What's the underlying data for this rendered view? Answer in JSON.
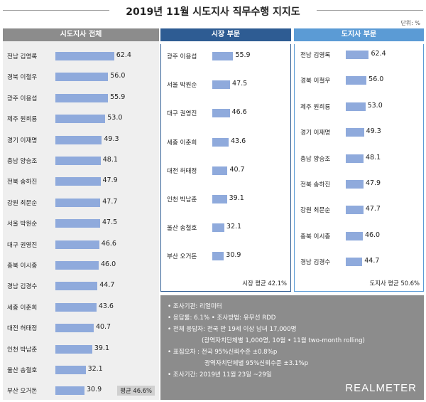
{
  "title": "2019년 11월 시도지사 직무수행 지지도",
  "unit": "단위: %",
  "colors": {
    "bar": "#8faadc",
    "overall_header": "#8c8c8c",
    "mayor_header": "#2e5c93",
    "governor_header": "#5b9bd5"
  },
  "chart_data": [
    {
      "type": "bar",
      "orientation": "horizontal",
      "title": "시도지사 전체",
      "categories": [
        "전남 김영록",
        "경북 이철우",
        "광주 이용섭",
        "제주 원희룡",
        "경기 이재명",
        "충남 양승조",
        "전북 송하진",
        "강원 최문순",
        "서울 박원순",
        "대구 권영진",
        "충북 이시종",
        "경남 김경수",
        "세종 이춘희",
        "대전 허태정",
        "인천 박남춘",
        "울산 송철호",
        "부산 오거돈"
      ],
      "values": [
        "62.4",
        "56.0",
        "55.9",
        "53.0",
        "49.3",
        "48.1",
        "47.9",
        "47.7",
        "47.5",
        "46.6",
        "46.0",
        "44.7",
        "43.6",
        "40.7",
        "39.1",
        "32.1",
        "30.9"
      ],
      "average_label": "평균 46.6%"
    },
    {
      "type": "bar",
      "orientation": "horizontal",
      "title": "시장 부문",
      "categories": [
        "광주 이용섭",
        "서울 박원순",
        "대구 권영진",
        "세종 이춘희",
        "대전 허태정",
        "인천 박남춘",
        "울산 송철호",
        "부산 오거돈"
      ],
      "values": [
        "55.9",
        "47.5",
        "46.6",
        "43.6",
        "40.7",
        "39.1",
        "32.1",
        "30.9"
      ],
      "average_label": "시장 평균 42.1%"
    },
    {
      "type": "bar",
      "orientation": "horizontal",
      "title": "도지사 부문",
      "categories": [
        "전남 김영록",
        "경북 이철우",
        "제주 원희룡",
        "경기 이재명",
        "충남 양승조",
        "전북 송하진",
        "강원 최문순",
        "충북 이시종",
        "경남 김경수"
      ],
      "values": [
        "62.4",
        "56.0",
        "53.0",
        "49.3",
        "48.1",
        "47.9",
        "47.7",
        "46.0",
        "44.7"
      ],
      "average_label": "도지사 평균 50.6%"
    }
  ],
  "info": {
    "lines": [
      "• 조사기관: 리얼미터",
      "• 응답률: 6.1% • 조사방법: 유무선 RDD",
      "• 전체 응답자: 전국 만 19세 이상 남녀 17,000명",
      "(광역자치단체별 1,000명, 10월 • 11월 two-month rolling)",
      "• 표집오차 : 전국 95%신뢰수준 ±0.8%p",
      "광역자치단체별 95%신뢰수준 ±3.1%p",
      "• 조사기간: 2019년 11월 23일 ~29일"
    ],
    "logo": "REALMETER"
  }
}
